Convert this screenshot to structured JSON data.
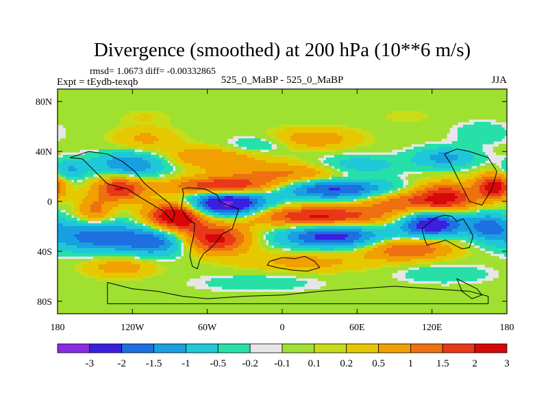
{
  "chart_data": {
    "type": "heatmap",
    "title": "Divergence (smoothed) at 200 hPa (10**6 m/s)",
    "stats": "rmsd= 1.0673 diff= -0.00332865",
    "experiment": "Expt = tEydb-texqb",
    "case": "525_0_MaBP - 525_0_MaBP",
    "season": "JJA",
    "xlim": [
      -180,
      180
    ],
    "ylim": [
      -90,
      90
    ],
    "xticks": [
      {
        "value": -180,
        "label": "180"
      },
      {
        "value": -120,
        "label": "120W"
      },
      {
        "value": -60,
        "label": "60W"
      },
      {
        "value": 0,
        "label": "0"
      },
      {
        "value": 60,
        "label": "60E"
      },
      {
        "value": 120,
        "label": "120E"
      },
      {
        "value": 180,
        "label": "180"
      }
    ],
    "yticks": [
      {
        "value": 80,
        "label": "80N"
      },
      {
        "value": 40,
        "label": "40N"
      },
      {
        "value": 0,
        "label": "0"
      },
      {
        "value": -40,
        "label": "40S"
      },
      {
        "value": -80,
        "label": "80S"
      }
    ],
    "colorbar": {
      "colors": [
        "#8a2be2",
        "#3a1fe0",
        "#1e6fe0",
        "#18a0e0",
        "#1fc8d8",
        "#26e0a8",
        "#e6e6e6",
        "#a0e030",
        "#c8dc18",
        "#e6c800",
        "#f0a000",
        "#ee7010",
        "#e83818",
        "#d80808"
      ],
      "labels": [
        "-3",
        "-2",
        "-1.5",
        "-1",
        "-0.5",
        "-0.2",
        "-0.1",
        "0.1",
        "0.2",
        "0.5",
        "1",
        "1.5",
        "2",
        "3"
      ]
    },
    "anomalies": [
      {
        "lon": -45,
        "lat": -2,
        "value": -3.3,
        "sx": 22,
        "sy": 7
      },
      {
        "lon": -85,
        "lat": -12,
        "value": 3.0,
        "sx": 16,
        "sy": 8
      },
      {
        "lon": -45,
        "lat": 12,
        "value": 2.2,
        "sx": 32,
        "sy": 5
      },
      {
        "lon": -130,
        "lat": 10,
        "value": 2.0,
        "sx": 14,
        "sy": 7
      },
      {
        "lon": -55,
        "lat": -30,
        "value": 2.3,
        "sx": 20,
        "sy": 8
      },
      {
        "lon": -100,
        "lat": -32,
        "value": -1.8,
        "sx": 20,
        "sy": 8
      },
      {
        "lon": -150,
        "lat": -28,
        "value": -1.8,
        "sx": 25,
        "sy": 9
      },
      {
        "lon": -150,
        "lat": -8,
        "value": 1.2,
        "sx": 10,
        "sy": 8
      },
      {
        "lon": -120,
        "lat": 30,
        "value": -1.6,
        "sx": 22,
        "sy": 7
      },
      {
        "lon": -60,
        "lat": 35,
        "value": 1.0,
        "sx": 30,
        "sy": 6
      },
      {
        "lon": 30,
        "lat": -12,
        "value": 2.2,
        "sx": 40,
        "sy": 6
      },
      {
        "lon": 40,
        "lat": -28,
        "value": -2.3,
        "sx": 30,
        "sy": 7
      },
      {
        "lon": 40,
        "lat": 10,
        "value": -2.2,
        "sx": 35,
        "sy": 6
      },
      {
        "lon": 10,
        "lat": 22,
        "value": 1.2,
        "sx": 40,
        "sy": 6
      },
      {
        "lon": 60,
        "lat": 28,
        "value": -1.0,
        "sx": 25,
        "sy": 6
      },
      {
        "lon": 90,
        "lat": 0,
        "value": 1.2,
        "sx": 20,
        "sy": 6
      },
      {
        "lon": 120,
        "lat": -18,
        "value": -2.8,
        "sx": 18,
        "sy": 7
      },
      {
        "lon": 100,
        "lat": -38,
        "value": 1.6,
        "sx": 25,
        "sy": 6
      },
      {
        "lon": 130,
        "lat": 3,
        "value": 2.3,
        "sx": 18,
        "sy": 8
      },
      {
        "lon": 130,
        "lat": 35,
        "value": -1.2,
        "sx": 18,
        "sy": 6
      },
      {
        "lon": 170,
        "lat": 12,
        "value": 2.4,
        "sx": 10,
        "sy": 7
      },
      {
        "lon": 165,
        "lat": -20,
        "value": -1.5,
        "sx": 12,
        "sy": 8
      },
      {
        "lon": -170,
        "lat": 25,
        "value": -1.0,
        "sx": 10,
        "sy": 6
      },
      {
        "lon": -110,
        "lat": 50,
        "value": 0.6,
        "sx": 18,
        "sy": 7
      },
      {
        "lon": 25,
        "lat": 50,
        "value": 0.8,
        "sx": 25,
        "sy": 6
      },
      {
        "lon": -20,
        "lat": 45,
        "value": -0.6,
        "sx": 18,
        "sy": 5
      },
      {
        "lon": 160,
        "lat": 55,
        "value": -0.5,
        "sx": 15,
        "sy": 6
      },
      {
        "lon": 20,
        "lat": -48,
        "value": 0.7,
        "sx": 35,
        "sy": 6
      },
      {
        "lon": -130,
        "lat": -52,
        "value": 0.8,
        "sx": 20,
        "sy": 6
      },
      {
        "lon": 130,
        "lat": -58,
        "value": -0.5,
        "sx": 25,
        "sy": 5
      },
      {
        "lon": -20,
        "lat": -65,
        "value": -0.4,
        "sx": 35,
        "sy": 5
      },
      {
        "lon": -110,
        "lat": 68,
        "value": 0.2,
        "sx": 15,
        "sy": 4
      },
      {
        "lon": 100,
        "lat": 68,
        "value": 0.2,
        "sx": 15,
        "sy": 4
      }
    ]
  }
}
